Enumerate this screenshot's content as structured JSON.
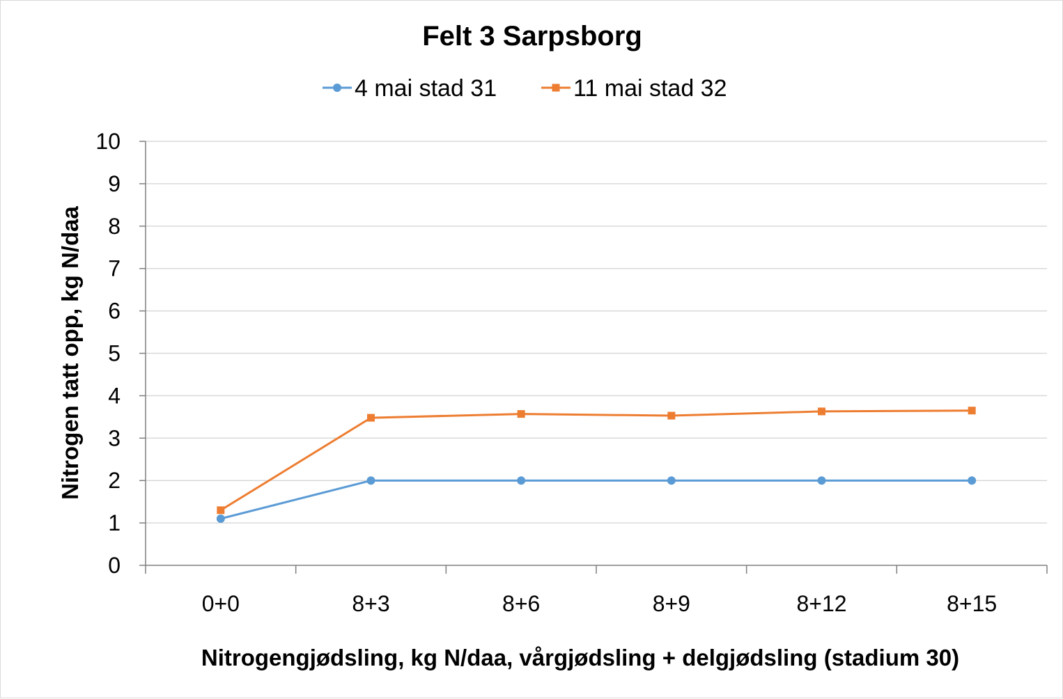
{
  "chart_data": {
    "type": "line",
    "title": "Felt 3 Sarpsborg",
    "xlabel": "Nitrogengjødsling, kg N/daa, vårgjødsling + delgjødsling (stadium 30)",
    "ylabel": "Nitrogen tatt opp, kg N/daa",
    "categories": [
      "0+0",
      "8+3",
      "8+6",
      "8+9",
      "8+12",
      "8+15"
    ],
    "ylim": [
      0,
      10
    ],
    "yticks": [
      0,
      1,
      2,
      3,
      4,
      5,
      6,
      7,
      8,
      9,
      10
    ],
    "grid": true,
    "legend_position": "top",
    "series": [
      {
        "name": "4 mai stad 31",
        "values": [
          1.1,
          2.0,
          2.0,
          2.0,
          2.0,
          2.0
        ],
        "color": "#5B9BD5",
        "marker": "circle"
      },
      {
        "name": "11 mai stad 32",
        "values": [
          1.3,
          3.48,
          3.57,
          3.53,
          3.63,
          3.65
        ],
        "color": "#ED7D31",
        "marker": "square"
      }
    ]
  }
}
